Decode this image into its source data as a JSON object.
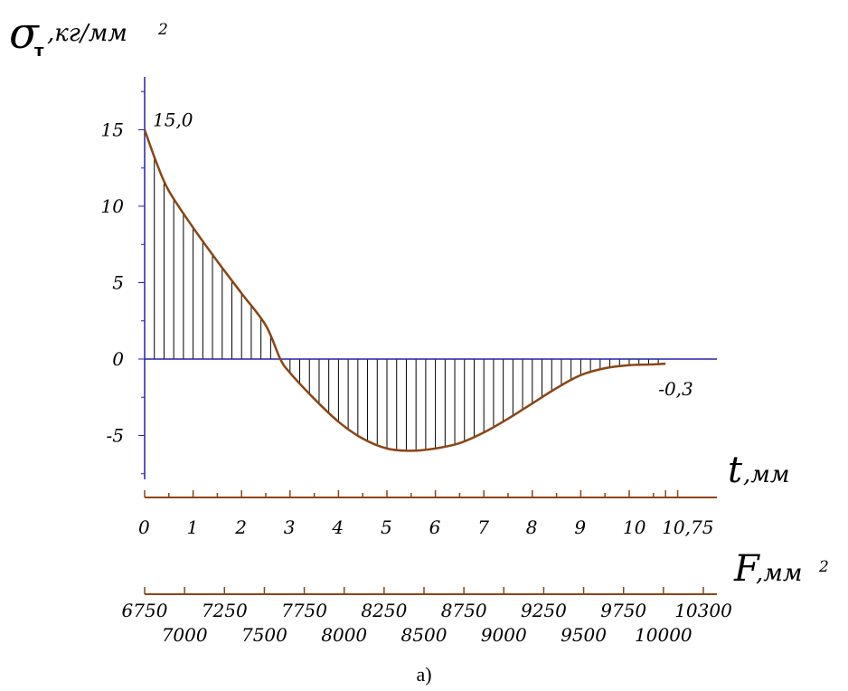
{
  "chart_data": {
    "type": "area",
    "y_label": {
      "symbol": "σ",
      "subscript": "т",
      "unit": ",кг/мм",
      "unit_sup": "2"
    },
    "x_label": {
      "symbol": "t",
      "unit": ",мм"
    },
    "f_label": {
      "symbol": "F",
      "unit": ",мм",
      "unit_sup": "2"
    },
    "ylim": [
      -7.6,
      18
    ],
    "y_ticks": [
      15,
      10,
      5,
      0,
      -5
    ],
    "y_tick_labels": [
      "15",
      "10",
      "5",
      "0",
      "-5"
    ],
    "xlim": [
      0,
      11.5
    ],
    "x_ticks": [
      0,
      1,
      2,
      3,
      4,
      5,
      6,
      7,
      8,
      9,
      10,
      10.75
    ],
    "x_tick_labels": [
      "0",
      "1",
      "2",
      "3",
      "4",
      "5",
      "6",
      "7",
      "8",
      "9",
      "10",
      "10,75"
    ],
    "f_ticks_top": [
      "6750",
      "7250",
      "7750",
      "8250",
      "8750",
      "9250",
      "9750",
      "10300"
    ],
    "f_ticks_bottom": [
      "7000",
      "7500",
      "8000",
      "8500",
      "9000",
      "9500",
      "10000"
    ],
    "annotations": [
      {
        "text": "15,0",
        "x": 0,
        "y": 15.0
      },
      {
        "text": "-0,3",
        "x": 10.75,
        "y": -0.3
      }
    ],
    "series": [
      {
        "color": "#8B4513",
        "x": [
          0,
          0.25,
          0.5,
          1,
          1.5,
          2,
          2.5,
          2.8,
          3,
          3.5,
          4,
          4.5,
          5,
          5.5,
          6,
          6.5,
          7,
          7.5,
          8,
          8.5,
          9,
          9.5,
          10,
          10.5,
          10.75
        ],
        "y": [
          15.0,
          12.8,
          11.0,
          8.6,
          6.4,
          4.3,
          2.2,
          0.0,
          -0.9,
          -2.6,
          -4.1,
          -5.2,
          -5.85,
          -6.0,
          -5.85,
          -5.5,
          -4.8,
          -3.9,
          -2.9,
          -1.9,
          -1.05,
          -0.6,
          -0.4,
          -0.35,
          -0.3
        ]
      }
    ],
    "axis_color": "#2222aa",
    "hatch_color": "#000000",
    "caption": "а)"
  }
}
